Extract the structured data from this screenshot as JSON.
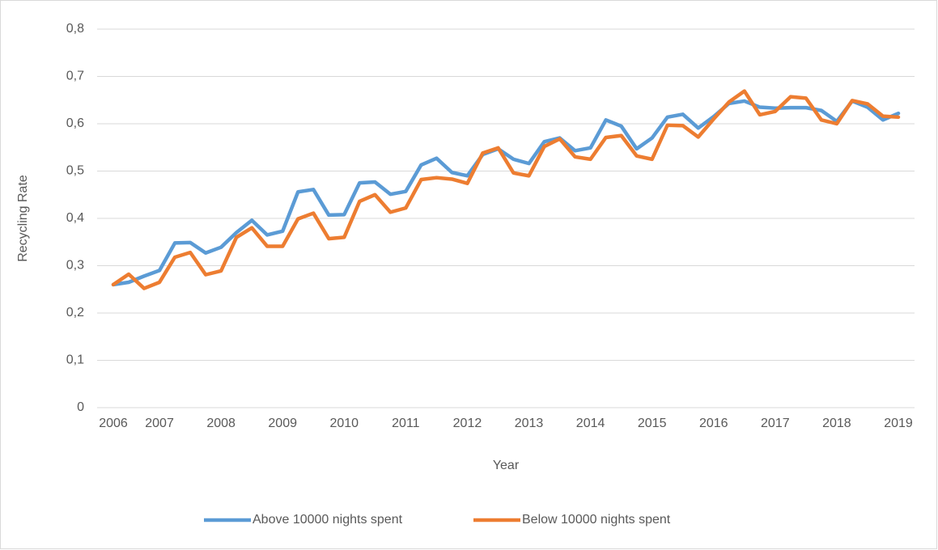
{
  "chart_data": {
    "type": "line",
    "xlabel": "Year",
    "ylabel": "Recycling Rate",
    "categories": [
      "2006",
      null,
      null,
      "2007",
      null,
      null,
      null,
      "2008",
      null,
      null,
      null,
      "2009",
      null,
      null,
      null,
      "2010",
      null,
      null,
      null,
      "2011",
      null,
      null,
      null,
      "2012",
      null,
      null,
      null,
      "2013",
      null,
      null,
      null,
      "2014",
      null,
      null,
      null,
      "2015",
      null,
      null,
      null,
      "2016",
      null,
      null,
      null,
      "2017",
      null,
      null,
      null,
      "2018",
      null,
      null,
      null,
      "2019"
    ],
    "series": [
      {
        "name": "Above 10000 nights spent",
        "color": "#5b9bd5",
        "values": [
          0.26,
          0.265,
          0.278,
          0.29,
          0.348,
          0.349,
          0.327,
          0.339,
          0.37,
          0.396,
          0.365,
          0.373,
          0.456,
          0.461,
          0.407,
          0.408,
          0.475,
          0.477,
          0.451,
          0.457,
          0.513,
          0.527,
          0.497,
          0.49,
          0.535,
          0.547,
          0.525,
          0.516,
          0.562,
          0.57,
          0.543,
          0.549,
          0.608,
          0.595,
          0.547,
          0.57,
          0.614,
          0.62,
          0.591,
          0.615,
          0.643,
          0.648,
          0.635,
          0.633,
          0.634,
          0.634,
          0.628,
          0.605,
          0.648,
          0.635,
          0.608,
          0.622
        ]
      },
      {
        "name": "Below 10000 nights spent",
        "color": "#ed7d31",
        "values": [
          0.26,
          0.282,
          0.252,
          0.265,
          0.318,
          0.328,
          0.281,
          0.289,
          0.36,
          0.38,
          0.341,
          0.341,
          0.399,
          0.411,
          0.357,
          0.36,
          0.436,
          0.45,
          0.413,
          0.422,
          0.482,
          0.486,
          0.483,
          0.474,
          0.538,
          0.549,
          0.496,
          0.49,
          0.552,
          0.568,
          0.53,
          0.525,
          0.571,
          0.575,
          0.532,
          0.525,
          0.597,
          0.596,
          0.572,
          0.61,
          0.646,
          0.669,
          0.619,
          0.626,
          0.657,
          0.654,
          0.608,
          0.6,
          0.649,
          0.642,
          0.616,
          0.614
        ]
      }
    ],
    "ylim": [
      0,
      0.8
    ],
    "yticks": [
      0,
      {
        "value": 0.1,
        "label": "0,1"
      },
      {
        "value": 0.2,
        "label": "0,2"
      },
      {
        "value": 0.3,
        "label": "0,3"
      },
      {
        "value": 0.4,
        "label": "0,4"
      },
      {
        "value": 0.5,
        "label": "0,5"
      },
      {
        "value": 0.6,
        "label": "0,6"
      },
      {
        "value": 0.7,
        "label": "0,7"
      },
      {
        "value": 0.8,
        "label": "0,8"
      }
    ],
    "grid": true,
    "legend": "bottom"
  }
}
